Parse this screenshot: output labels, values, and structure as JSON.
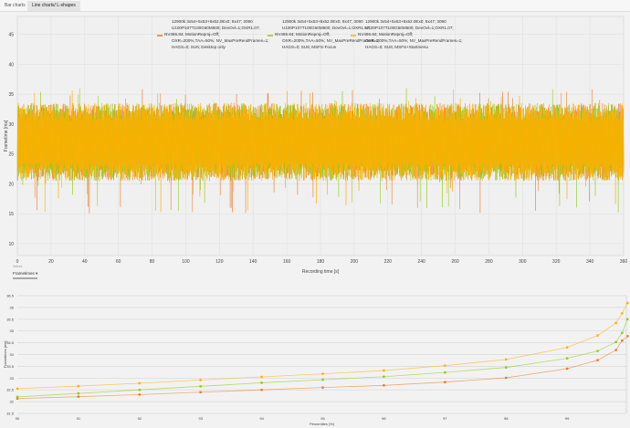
{
  "tabs": [
    {
      "label": "Bar charts"
    },
    {
      "label": "Line charts/ L-shapes",
      "active": true
    }
  ],
  "controls": {
    "values_label": "Values",
    "metric_select": "Frametimes",
    "metric_caret": "▾"
  },
  "chart_data": [
    {
      "type": "line",
      "title": "",
      "xlabel": "Recording time [s]",
      "ylabel": "Frametime [ms]",
      "xlim": [
        0,
        360
      ],
      "ylim": [
        8,
        48
      ],
      "xticks": [
        "0",
        "20",
        "40",
        "60",
        "80",
        "100",
        "120",
        "140",
        "160",
        "180",
        "200",
        "220",
        "240",
        "260",
        "280",
        "300",
        "320",
        "340",
        "360"
      ],
      "yticks": [
        "10",
        "15",
        "20",
        "25",
        "30",
        "35",
        "40",
        "45"
      ],
      "grid": true,
      "legend_position": "top-center",
      "series": [
        {
          "name": "12900k 3x54+5x53+8x52.0Ex0; 8x47; 3090\nU100P107T100G50M500; DevOvl=1;OXR1.07;\nNV496.84; MotionReproj=Off;\nOXR=200%,TAA=50%; NV_MaxPreRendFrames=1;\nHAGS=0; SU6; Desktop only",
          "color": "#f07820",
          "typical_range": [
            22,
            32
          ]
        },
        {
          "name": "12900k 3x54+5x53+8x52.0Ex0; 8x47; 3090\nU100P107T100G50M500; DevOvl=1;OXR1.07;\nNV496.84; MotionReproj=Off;\nOXR=200%,TAA=50%; NV_MaxPreRendFrames=1;\nHAGS=0; SU6; MSFS-Focus",
          "color": "#8ccc10",
          "typical_range": [
            22,
            32
          ]
        },
        {
          "name": "12900k 3x54+5x53+8x52.0Ex0; 8x47; 3090\nU100P107T100G50M500; DevOvl=1;OXR1.07;\nNV496.84; MotionReproj=Off;\nOXR=200%,TAA=50%; NV_MaxPreRendFrames=1;\nHAGS=0; SU6; MSFS+Startmenu",
          "color": "#ffb000",
          "typical_range": [
            22,
            32
          ]
        }
      ]
    },
    {
      "type": "line",
      "title": "",
      "xlabel": "Percentiles (%)",
      "ylabel": "Frametimes [ms]",
      "xlim": [
        90,
        100
      ],
      "ylim": [
        31.5,
        36.5
      ],
      "xticks": [
        "90",
        "91",
        "92",
        "93",
        "94",
        "95",
        "96",
        "97",
        "98",
        "99"
      ],
      "yticks": [
        "31.5",
        "32",
        "32.5",
        "33",
        "33.5",
        "34",
        "34.5",
        "35",
        "35.5",
        "36",
        "36.5"
      ],
      "grid": true,
      "x": [
        90,
        91,
        92,
        93,
        94,
        95,
        96,
        97,
        98,
        99,
        99.5,
        99.8,
        99.9,
        99.99
      ],
      "series": [
        {
          "color": "#f07820",
          "values": [
            32.13,
            32.21,
            32.3,
            32.4,
            32.5,
            32.6,
            32.69,
            32.83,
            33.01,
            33.4,
            33.76,
            34.19,
            34.59,
            34.78
          ]
        },
        {
          "color": "#8ccc10",
          "values": [
            32.2,
            32.35,
            32.5,
            32.65,
            32.8,
            32.93,
            33.06,
            33.24,
            33.45,
            33.84,
            34.15,
            34.53,
            34.92,
            35.5
          ]
        },
        {
          "color": "#ffb000",
          "values": [
            32.55,
            32.66,
            32.78,
            32.92,
            33.05,
            33.18,
            33.32,
            33.53,
            33.79,
            34.3,
            34.81,
            35.34,
            35.75,
            36.19
          ]
        }
      ]
    }
  ]
}
